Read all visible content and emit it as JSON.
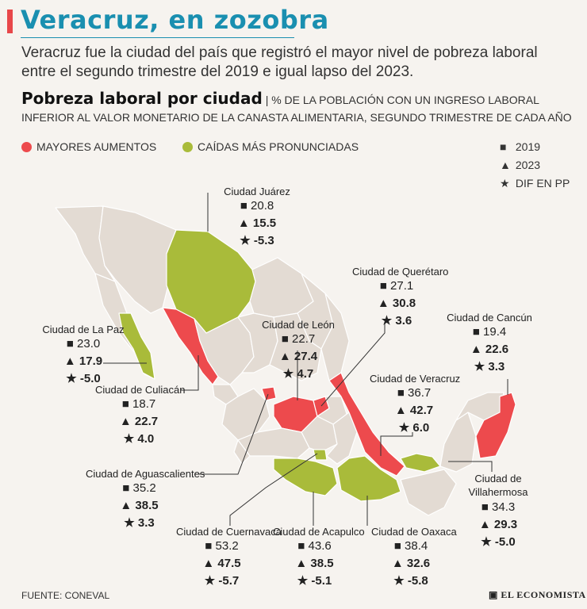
{
  "header": {
    "title": "Veracruz, en zozobra",
    "subtitle": "Veracruz fue la ciudad del país que registró el mayor nivel de pobreza laboral entre el segundo trimestre del 2019 e igual lapso del 2023.",
    "chart_title": "Pobreza laboral por ciudad",
    "chart_desc": "| % DE LA POBLACIÓN  CON UN INGRESO LABORAL INFERIOR AL VALOR MONETARIO DE LA CANASTA ALIMENTARIA, SEGUNDO TRIMESTRE DE CADA AÑO"
  },
  "legend": {
    "increase_label": "MAYORES AUMENTOS",
    "decrease_label": "CAÍDAS MÁS PRONUNCIADAS",
    "increase_color": "#ed4a4d",
    "decrease_color": "#a9bb3a",
    "key_2019": "2019",
    "key_2023": "2023",
    "key_diff": "DIF EN PP"
  },
  "symbols": {
    "s2019": "■",
    "s2023": "▲",
    "sdiff": "★"
  },
  "cities": [
    {
      "name": "Ciudad Juárez",
      "v2019": "20.8",
      "v2023": "15.5",
      "diff": "-5.3"
    },
    {
      "name": "Ciudad de Querétaro",
      "v2019": "27.1",
      "v2023": "30.8",
      "diff": "3.6"
    },
    {
      "name": "Ciudad de La Paz",
      "v2019": "23.0",
      "v2023": "17.9",
      "diff": "-5.0"
    },
    {
      "name": "Ciudad de León",
      "v2019": "22.7",
      "v2023": "27.4",
      "diff": "4.7"
    },
    {
      "name": "Ciudad de Cancún",
      "v2019": "19.4",
      "v2023": "22.6",
      "diff": "3.3"
    },
    {
      "name": "Ciudad de Culiacán",
      "v2019": "18.7",
      "v2023": "22.7",
      "diff": "4.0"
    },
    {
      "name": "Ciudad de Veracruz",
      "v2019": "36.7",
      "v2023": "42.7",
      "diff": "6.0"
    },
    {
      "name": "Ciudad de Aguascalientes",
      "v2019": "35.2",
      "v2023": "38.5",
      "diff": "3.3"
    },
    {
      "name": "Ciudad de Villahermosa",
      "v2019": "34.3",
      "v2023": "29.3",
      "diff": "-5.0"
    },
    {
      "name": "Ciudad de Cuernavaca",
      "v2019": "53.2",
      "v2023": "47.5",
      "diff": "-5.7"
    },
    {
      "name": "Ciudad de Acapulco",
      "v2019": "43.6",
      "v2023": "38.5",
      "diff": "-5.1"
    },
    {
      "name": "Ciudad de Oaxaca",
      "v2019": "38.4",
      "v2023": "32.6",
      "diff": "-5.8"
    }
  ],
  "footer": {
    "source": "FUENTE: CONEVAL",
    "brand": "EL ECONOMISTA"
  }
}
